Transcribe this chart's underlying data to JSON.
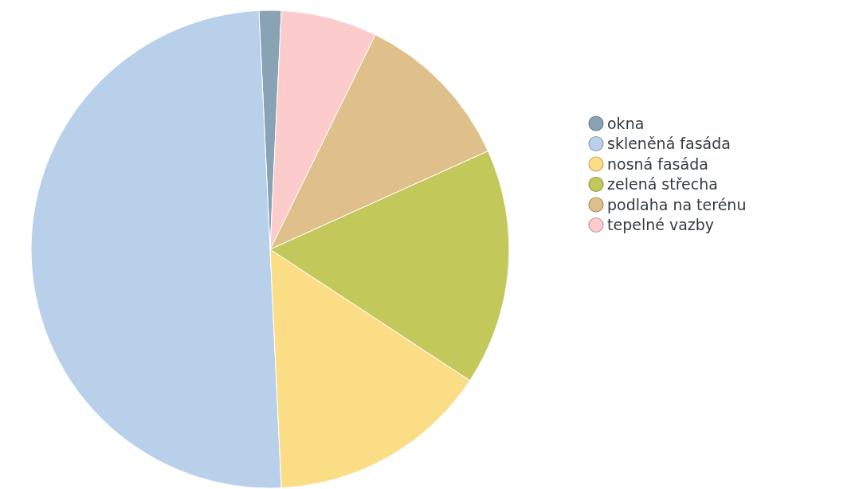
{
  "chart_data": {
    "type": "pie",
    "categories": [
      "okna",
      "skleněná fasáda",
      "nosná fasáda",
      "zelená střecha",
      "podlaha na terénu",
      "tepelné vazby"
    ],
    "values": [
      1.5,
      50,
      15,
      16,
      11,
      6.5
    ],
    "colors": [
      "#8aa3b4",
      "#b8d0ea",
      "#fbdd86",
      "#c2c85a",
      "#e0c08a",
      "#fccbcb"
    ],
    "legend": "right"
  }
}
